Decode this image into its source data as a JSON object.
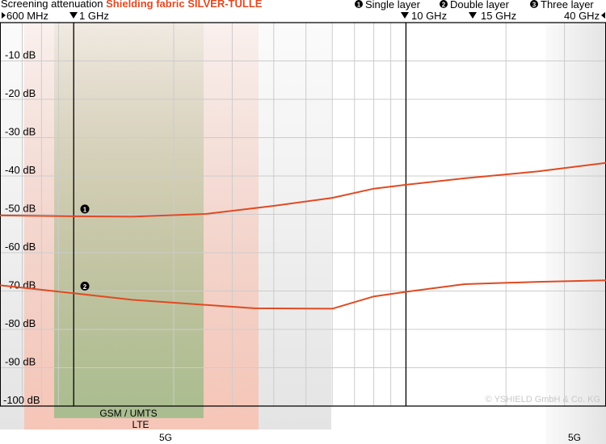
{
  "header": {
    "title_prefix": "Screening attenuation ",
    "title_product": "Shielding fabric SILVER-TULLE",
    "freq_600mhz": "600 MHz",
    "freq_1ghz": "1 GHz",
    "freq_10ghz": "10 GHz",
    "freq_15ghz": "15 GHz",
    "freq_40ghz": "40 GHz",
    "legend_single": "Single layer",
    "legend_double": "Double layer",
    "legend_three": "Three layer",
    "marker_1": "1",
    "marker_2": "2",
    "marker_3": "3"
  },
  "bands": {
    "gsm_umts": "GSM / UMTS",
    "lte": "LTE",
    "fiveg_low": "5G",
    "fiveg_high": "5G"
  },
  "copyright": "© YSHIELD GmbH & Co. KG",
  "colors": {
    "series": "#e04a22",
    "axis": "#000000",
    "grid": "#cccccc",
    "band_green": "#a9bd8f",
    "band_red": "#f6c6b8",
    "band_gray": "#e4e4e4",
    "title_accent": "#e04a22"
  },
  "chart_data": {
    "type": "line",
    "x_scale": "log",
    "x_unit": "GHz",
    "xlim": [
      0.6,
      40
    ],
    "ylim": [
      -100,
      0
    ],
    "y_ticks": [
      -10,
      -20,
      -30,
      -40,
      -50,
      -60,
      -70,
      -80,
      -90,
      -100
    ],
    "y_tick_labels": [
      "-10 dB",
      "-20 dB",
      "-30 dB",
      "-40 dB",
      "-50 dB",
      "-60 dB",
      "-70 dB",
      "-80 dB",
      "-90 dB",
      "-100 dB"
    ],
    "grid": true,
    "series": [
      {
        "name": "Single layer",
        "marker": "1",
        "x": [
          0.6,
          1.0,
          1.5,
          2.5,
          4.0,
          6.0,
          8.0,
          10.0,
          15.0,
          25.0,
          40.0
        ],
        "y": [
          -50.3,
          -50.5,
          -50.6,
          -49.9,
          -47.8,
          -45.7,
          -43.3,
          -42.3,
          -40.6,
          -38.8,
          -36.6
        ]
      },
      {
        "name": "Double layer",
        "marker": "2",
        "x": [
          0.6,
          1.0,
          1.5,
          3.5,
          6.0,
          8.0,
          10.0,
          15.0,
          25.0,
          40.0
        ],
        "y": [
          -68.5,
          -70.6,
          -72.3,
          -74.5,
          -74.6,
          -71.4,
          -70.2,
          -68.2,
          -67.6,
          -67.2
        ]
      }
    ]
  }
}
